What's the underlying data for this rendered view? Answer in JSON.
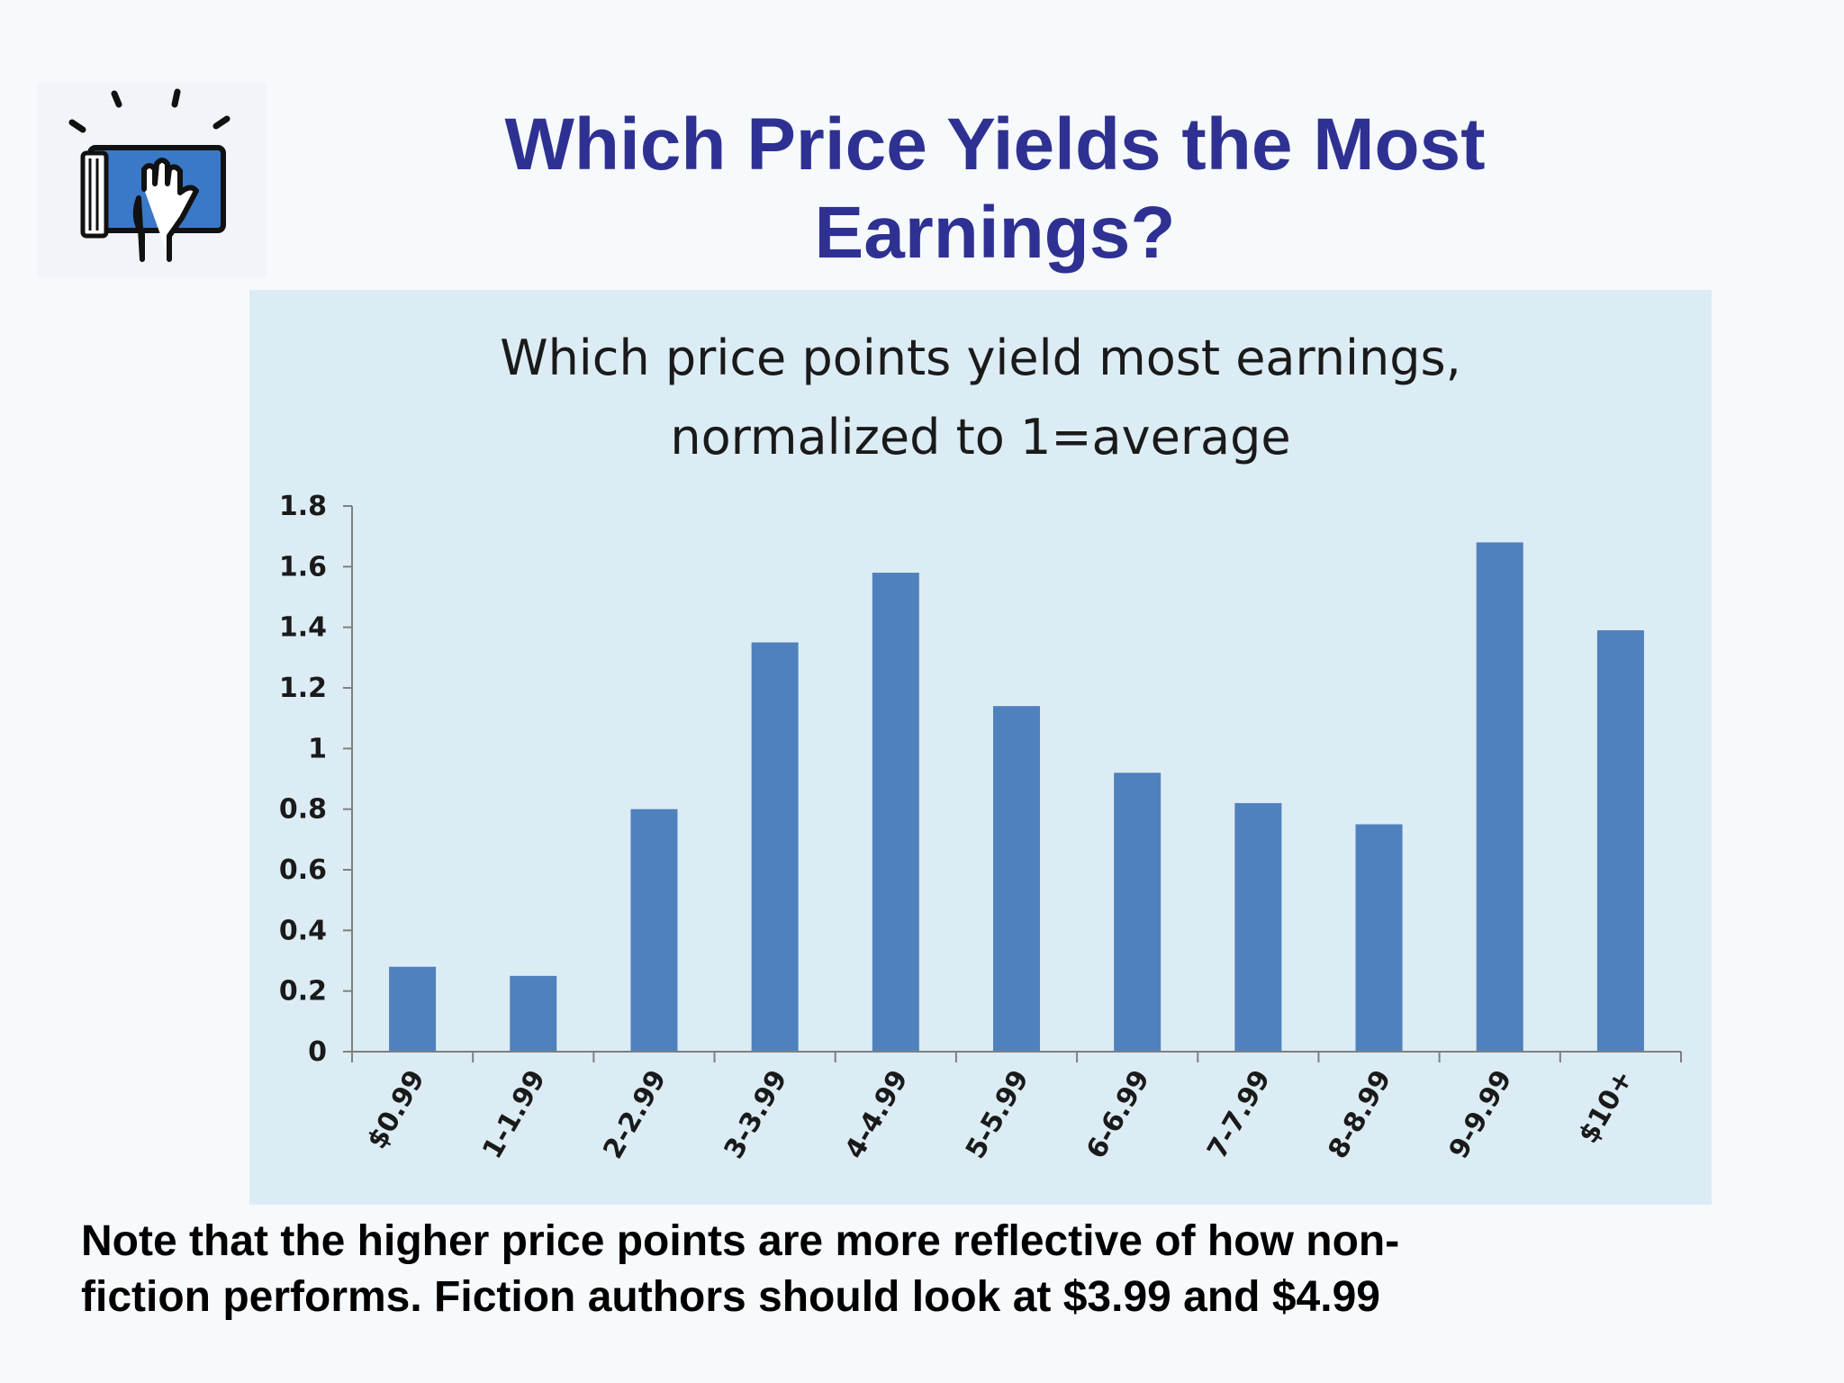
{
  "slide": {
    "title_line1": "Which Price Yields the Most",
    "title_line2": "Earnings?",
    "footnote_line1": "Note that the higher price points are more reflective of how non-",
    "footnote_line2": "fiction performs.  Fiction authors should look at $3.99 and $4.99",
    "logo_icon": "book-hand-icon",
    "title_color": "#2e3192"
  },
  "chart_data": {
    "type": "bar",
    "title_line1": "Which price points yield most earnings,",
    "title_line2": "normalized to 1=average",
    "categories": [
      "$0.99",
      "1-1.99",
      "2-2.99",
      "3-3.99",
      "4-4.99",
      "5-5.99",
      "6-6.99",
      "7-7.99",
      "8-8.99",
      "9-9.99",
      "$10+"
    ],
    "values": [
      0.28,
      0.25,
      0.8,
      1.35,
      1.58,
      1.14,
      0.92,
      0.82,
      0.75,
      1.68,
      1.39
    ],
    "ylim": [
      0,
      1.8
    ],
    "yticks": [
      "0",
      "0.2",
      "0.4",
      "0.6",
      "0.8",
      "1",
      "1.2",
      "1.4",
      "1.6",
      "1.8"
    ],
    "bar_color": "#4f81bd",
    "background_color": "#dcecf4",
    "grid": false,
    "legend": "none"
  }
}
